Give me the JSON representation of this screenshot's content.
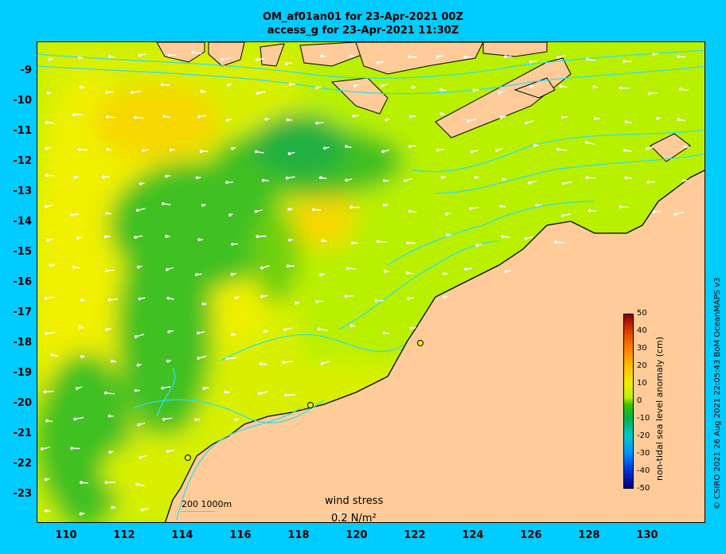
{
  "title_line1": "OM_af01an01 for 23-Apr-2021 00Z",
  "title_line2": "access_g for 23-Apr-2021 11:30Z",
  "y_ticks": [
    "-9",
    "-10",
    "-11",
    "-12",
    "-13",
    "-14",
    "-15",
    "-16",
    "-17",
    "-18",
    "-19",
    "-20",
    "-21",
    "-22",
    "-23"
  ],
  "x_ticks": [
    "110",
    "112",
    "114",
    "116",
    "118",
    "120",
    "122",
    "124",
    "126",
    "128",
    "130"
  ],
  "lon_range": [
    109,
    132
  ],
  "lat_range": [
    -24,
    -8.1
  ],
  "colorbar": {
    "label": "non-tidal sea level anomaly (cm)",
    "ticks": [
      "50",
      "40",
      "30",
      "20",
      "10",
      "0",
      "-10",
      "-20",
      "-30",
      "-40",
      "-50"
    ],
    "range": [
      -50,
      50
    ]
  },
  "scale_bar_label": "200  1000m",
  "wind_key": {
    "title": "wind stress",
    "value": "0.2 N/m²"
  },
  "credit": "© CSIRO 2021  26 Aug 2021 22:05:43 BoM OceanMAPS v3",
  "colors": {
    "background": "#00CCFF",
    "land": "#FFCC99",
    "isobath": "#33DDE8"
  }
}
